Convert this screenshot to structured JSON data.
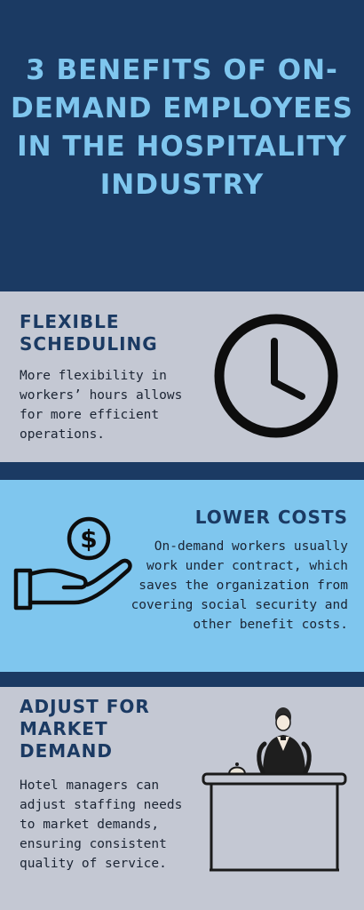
{
  "title": "3 BENEFITS OF ON-DEMAND EMPLOYEES IN THE HOSPITALITY INDUSTRY",
  "sections": [
    {
      "heading": "FLEXIBLE SCHEDULING",
      "body": "More flexibility in workers’ hours allows for more efficient operations.",
      "icon": "clock-icon"
    },
    {
      "heading": "LOWER COSTS",
      "body": "On-demand workers usually work under contract, which saves the organization from covering social security and other benefit costs.",
      "icon": "money-hand-icon"
    },
    {
      "heading": "ADJUST FOR MARKET DEMAND",
      "body": "Hotel managers can adjust staffing needs to market demands, ensuring consistent quality of service.",
      "icon": "concierge-desk-icon"
    }
  ],
  "colors": {
    "navy": "#1b3a63",
    "light_blue": "#7fc6ee",
    "grey": "#c4c8d3"
  }
}
